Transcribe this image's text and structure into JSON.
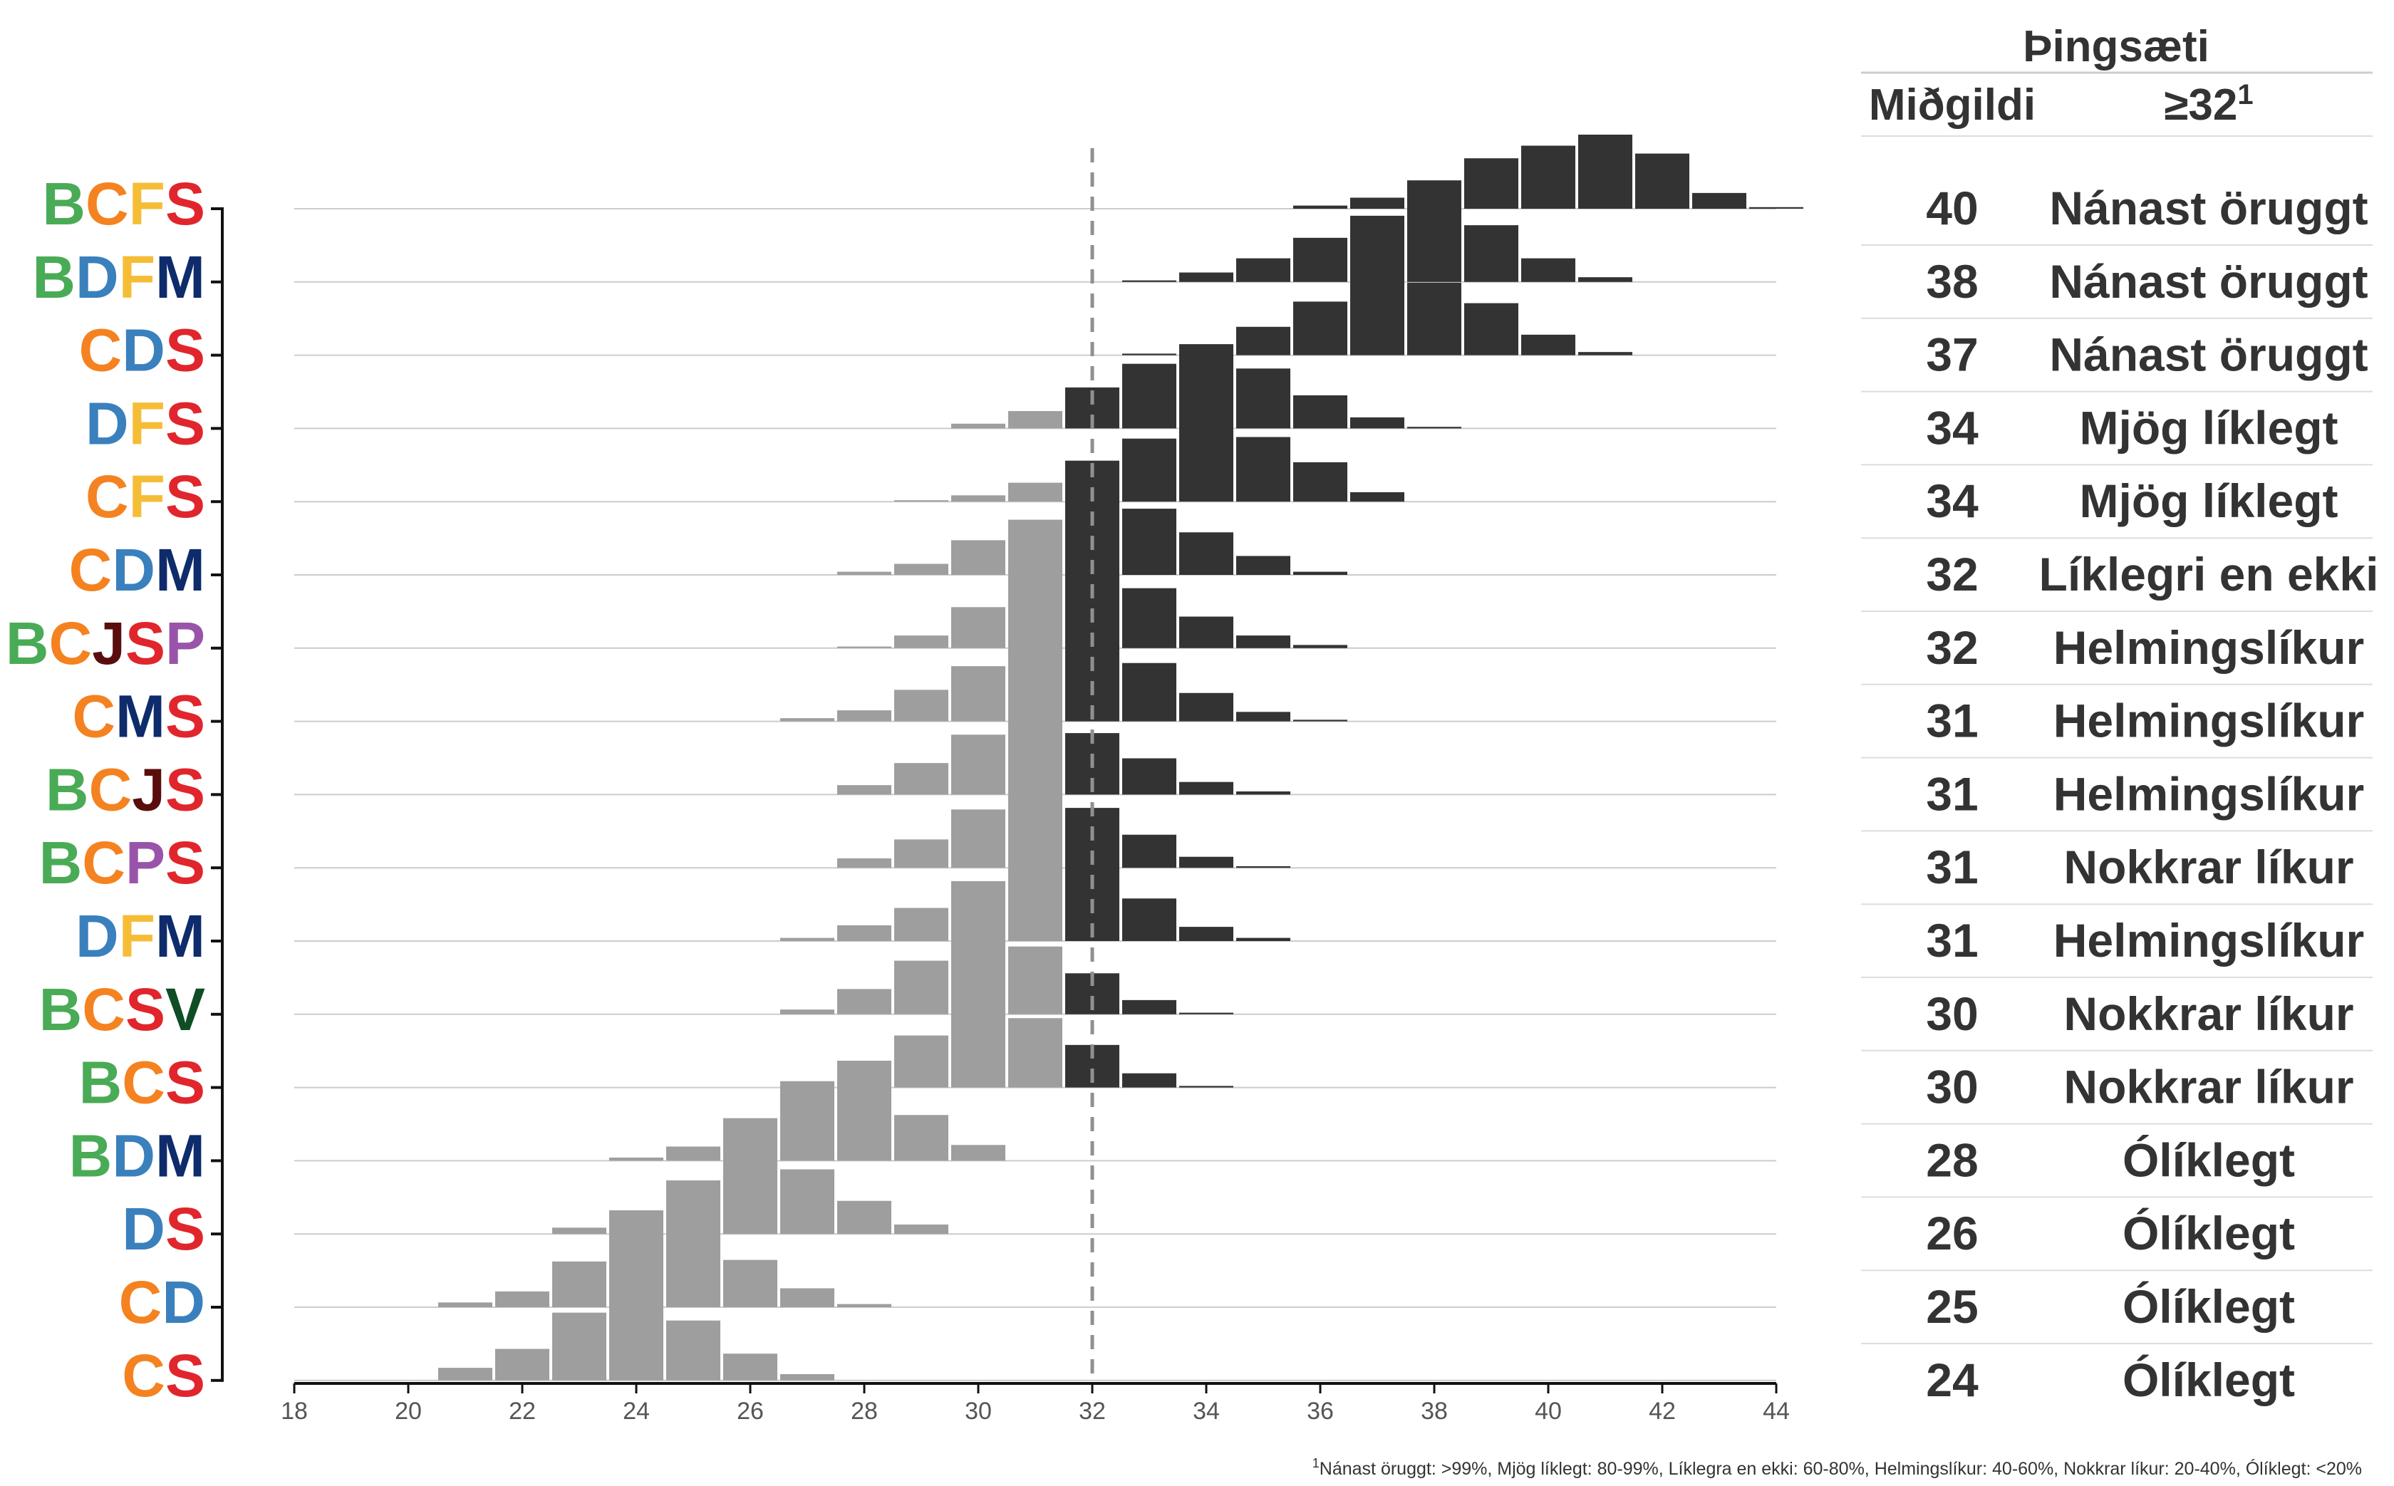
{
  "colors": {
    "B": "#4aab56",
    "C": "#f58220",
    "F": "#f5bd36",
    "S": "#e0262c",
    "D": "#3a80bd",
    "M": "#0e2b6b",
    "J": "#5a0d0d",
    "P": "#9954aa",
    "V": "#0f4d25",
    "bar_above": "#333333",
    "bar_below": "#9e9e9e",
    "threshold_line": "#909090"
  },
  "table": {
    "header_group": "Þingsæti",
    "col_median": "Miðgildi",
    "col_prob_base": "≥32",
    "col_prob_sup": "1"
  },
  "footnote": {
    "sup": "1",
    "text": "Nánast öruggt: >99%, Mjög líklegt: 80-99%, Líklegra en ekki: 60-80%, Helmingslíkur: 40-60%, Nokkrar líkur: 20-40%, Ólíklegt: <20%"
  },
  "chart_data": {
    "type": "bar",
    "x_ticks": [
      18,
      20,
      22,
      24,
      26,
      28,
      30,
      32,
      34,
      36,
      38,
      40,
      42,
      44
    ],
    "xlim": [
      18,
      44
    ],
    "threshold": 32,
    "rows": [
      {
        "name": "BCFS",
        "letters": [
          "B",
          "C",
          "F",
          "S"
        ],
        "median": "40",
        "prob": "Nánast öruggt",
        "bins": [
          [
            36,
            0.02
          ],
          [
            37,
            0.07
          ],
          [
            38,
            0.18
          ],
          [
            39,
            0.32
          ],
          [
            40,
            0.4
          ],
          [
            41,
            0.47
          ],
          [
            42,
            0.35
          ],
          [
            43,
            0.1
          ],
          [
            44,
            0.01
          ]
        ]
      },
      {
        "name": "BDFM",
        "letters": [
          "B",
          "D",
          "F",
          "M"
        ],
        "median": "38",
        "prob": "Nánast öruggt",
        "bins": [
          [
            33,
            0.01
          ],
          [
            34,
            0.06
          ],
          [
            35,
            0.15
          ],
          [
            36,
            0.28
          ],
          [
            37,
            0.42
          ],
          [
            38,
            0.47
          ],
          [
            39,
            0.36
          ],
          [
            40,
            0.15
          ],
          [
            41,
            0.03
          ]
        ]
      },
      {
        "name": "CDS",
        "letters": [
          "C",
          "D",
          "S"
        ],
        "median": "37",
        "prob": "Nánast öruggt",
        "bins": [
          [
            33,
            0.01
          ],
          [
            34,
            0.07
          ],
          [
            35,
            0.18
          ],
          [
            36,
            0.34
          ],
          [
            37,
            0.47
          ],
          [
            38,
            0.46
          ],
          [
            39,
            0.33
          ],
          [
            40,
            0.13
          ],
          [
            41,
            0.02
          ]
        ]
      },
      {
        "name": "DFS",
        "letters": [
          "D",
          "F",
          "S"
        ],
        "median": "34",
        "prob": "Mjög líklegt",
        "bins": [
          [
            30,
            0.03
          ],
          [
            31,
            0.11
          ],
          [
            32,
            0.26
          ],
          [
            33,
            0.41
          ],
          [
            34,
            0.47
          ],
          [
            35,
            0.38
          ],
          [
            36,
            0.21
          ],
          [
            37,
            0.07
          ],
          [
            38,
            0.01
          ]
        ]
      },
      {
        "name": "CFS",
        "letters": [
          "C",
          "F",
          "S"
        ],
        "median": "34",
        "prob": "Mjög líklegt",
        "bins": [
          [
            29,
            0.005
          ],
          [
            30,
            0.04
          ],
          [
            31,
            0.12
          ],
          [
            32,
            0.26
          ],
          [
            33,
            0.4
          ],
          [
            34,
            0.47
          ],
          [
            35,
            0.41
          ],
          [
            36,
            0.25
          ],
          [
            37,
            0.06
          ]
        ]
      },
      {
        "name": "CDM",
        "letters": [
          "C",
          "D",
          "M"
        ],
        "median": "32",
        "prob": "Líklegri en ekki",
        "bins": [
          [
            28,
            0.02
          ],
          [
            29,
            0.07
          ],
          [
            30,
            0.22
          ],
          [
            31,
            0.35
          ],
          [
            32,
            0.47
          ],
          [
            33,
            0.42
          ],
          [
            34,
            0.27
          ],
          [
            35,
            0.12
          ],
          [
            36,
            0.02
          ]
        ]
      },
      {
        "name": "BCJSP",
        "letters": [
          "B",
          "C",
          "J",
          "S",
          "P"
        ],
        "median": "32",
        "prob": "Helmingslíkur",
        "bins": [
          [
            28,
            0.01
          ],
          [
            29,
            0.08
          ],
          [
            30,
            0.26
          ],
          [
            31,
            0.47
          ],
          [
            32,
            0.47
          ],
          [
            33,
            0.38
          ],
          [
            34,
            0.2
          ],
          [
            35,
            0.08
          ],
          [
            36,
            0.02
          ]
        ]
      },
      {
        "name": "CMS",
        "letters": [
          "C",
          "M",
          "S"
        ],
        "median": "31",
        "prob": "Helmingslíkur",
        "bins": [
          [
            27,
            0.02
          ],
          [
            28,
            0.07
          ],
          [
            29,
            0.2
          ],
          [
            30,
            0.35
          ],
          [
            31,
            0.47
          ],
          [
            32,
            0.47
          ],
          [
            33,
            0.37
          ],
          [
            34,
            0.18
          ],
          [
            35,
            0.06
          ],
          [
            36,
            0.01
          ]
        ]
      },
      {
        "name": "BCJS",
        "letters": [
          "B",
          "C",
          "J",
          "S"
        ],
        "median": "31",
        "prob": "Helmingslíkur",
        "bins": [
          [
            28,
            0.06
          ],
          [
            29,
            0.2
          ],
          [
            30,
            0.38
          ],
          [
            31,
            0.47
          ],
          [
            32,
            0.39
          ],
          [
            33,
            0.23
          ],
          [
            34,
            0.08
          ],
          [
            35,
            0.02
          ]
        ]
      },
      {
        "name": "BCPS",
        "letters": [
          "B",
          "C",
          "P",
          "S"
        ],
        "median": "31",
        "prob": "Nokkrar líkur",
        "bins": [
          [
            28,
            0.06
          ],
          [
            29,
            0.18
          ],
          [
            30,
            0.37
          ],
          [
            31,
            0.47
          ],
          [
            32,
            0.38
          ],
          [
            33,
            0.21
          ],
          [
            34,
            0.07
          ],
          [
            35,
            0.01
          ]
        ]
      },
      {
        "name": "DFM",
        "letters": [
          "D",
          "F",
          "M"
        ],
        "median": "31",
        "prob": "Helmingslíkur",
        "bins": [
          [
            27,
            0.02
          ],
          [
            28,
            0.1
          ],
          [
            29,
            0.21
          ],
          [
            30,
            0.38
          ],
          [
            31,
            0.47
          ],
          [
            32,
            0.47
          ],
          [
            33,
            0.27
          ],
          [
            34,
            0.09
          ],
          [
            35,
            0.02
          ]
        ]
      },
      {
        "name": "BCSV",
        "letters": [
          "B",
          "C",
          "S",
          "V"
        ],
        "median": "30",
        "prob": "Nokkrar líkur",
        "bins": [
          [
            27,
            0.03
          ],
          [
            28,
            0.16
          ],
          [
            29,
            0.34
          ],
          [
            30,
            0.47
          ],
          [
            31,
            0.43
          ],
          [
            32,
            0.26
          ],
          [
            33,
            0.09
          ],
          [
            34,
            0.01
          ]
        ]
      },
      {
        "name": "BCS",
        "letters": [
          "B",
          "C",
          "S"
        ],
        "median": "30",
        "prob": "Nokkrar líkur",
        "bins": [
          [
            27,
            0.04
          ],
          [
            28,
            0.17
          ],
          [
            29,
            0.33
          ],
          [
            30,
            0.47
          ],
          [
            31,
            0.44
          ],
          [
            32,
            0.27
          ],
          [
            33,
            0.09
          ],
          [
            34,
            0.01
          ]
        ]
      },
      {
        "name": "BDM",
        "letters": [
          "B",
          "D",
          "M"
        ],
        "median": "28",
        "prob": "Ólíklegt",
        "bins": [
          [
            24,
            0.02
          ],
          [
            25,
            0.09
          ],
          [
            26,
            0.27
          ],
          [
            27,
            0.47
          ],
          [
            28,
            0.47
          ],
          [
            29,
            0.29
          ],
          [
            30,
            0.1
          ]
        ]
      },
      {
        "name": "DS",
        "letters": [
          "D",
          "S"
        ],
        "median": "26",
        "prob": "Ólíklegt",
        "bins": [
          [
            23,
            0.04
          ],
          [
            24,
            0.15
          ],
          [
            25,
            0.34
          ],
          [
            26,
            0.47
          ],
          [
            27,
            0.41
          ],
          [
            28,
            0.21
          ],
          [
            29,
            0.06
          ]
        ]
      },
      {
        "name": "CD",
        "letters": [
          "C",
          "D"
        ],
        "median": "25",
        "prob": "Ólíklegt",
        "bins": [
          [
            21,
            0.03
          ],
          [
            22,
            0.1
          ],
          [
            23,
            0.29
          ],
          [
            24,
            0.47
          ],
          [
            25,
            0.47
          ],
          [
            26,
            0.3
          ],
          [
            27,
            0.12
          ],
          [
            28,
            0.02
          ]
        ]
      },
      {
        "name": "CS",
        "letters": [
          "C",
          "S"
        ],
        "median": "24",
        "prob": "Ólíklegt",
        "bins": [
          [
            21,
            0.08
          ],
          [
            22,
            0.2
          ],
          [
            23,
            0.43
          ],
          [
            24,
            0.47
          ],
          [
            25,
            0.38
          ],
          [
            26,
            0.17
          ],
          [
            27,
            0.04
          ]
        ]
      }
    ]
  }
}
